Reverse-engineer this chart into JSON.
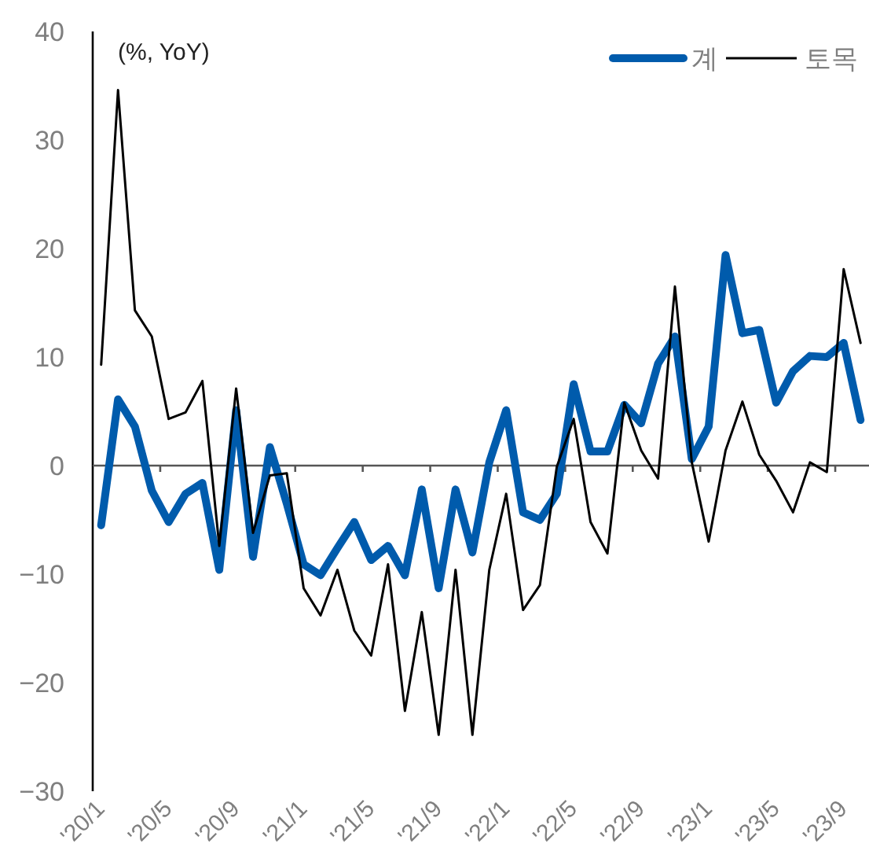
{
  "chart_data": {
    "type": "line",
    "categories": [
      "'20/1",
      null,
      null,
      null,
      "'20/5",
      null,
      null,
      null,
      "'20/9",
      null,
      null,
      null,
      "'21/1",
      null,
      null,
      null,
      "'21/5",
      null,
      null,
      null,
      "'21/9",
      null,
      null,
      null,
      "'22/1",
      null,
      null,
      null,
      "'22/5",
      null,
      null,
      null,
      "'22/9",
      null,
      null,
      null,
      "'23/1",
      null,
      null,
      null,
      "'23/5",
      null,
      null,
      null,
      "'23/9",
      null
    ],
    "series": [
      {
        "name": "계",
        "color": "#005bac",
        "values": [
          -5.5,
          6.1,
          3.6,
          -2.3,
          -5.2,
          -2.6,
          -1.6,
          -9.6,
          5.1,
          -8.4,
          1.7,
          -3.5,
          -9.1,
          -10.1,
          -7.6,
          -5.2,
          -8.7,
          -7.4,
          -10.1,
          -2.2,
          -11.3,
          -2.2,
          -8,
          0.3,
          5.1,
          -4.3,
          -5,
          -2.6,
          7.5,
          1.3,
          1.3,
          5.6,
          3.9,
          9.4,
          11.9,
          0.6,
          3.6,
          19.4,
          12.2,
          12.5,
          5.8,
          8.7,
          10.1,
          10,
          11.3,
          4.2
        ]
      },
      {
        "name": "토목",
        "color": "#000000",
        "values": [
          9.3,
          34.6,
          14.3,
          11.9,
          4.3,
          4.9,
          7.8,
          -7.4,
          7.1,
          -6.2,
          -0.9,
          -0.7,
          -11.3,
          -13.8,
          -9.6,
          -15.2,
          -17.5,
          -9.1,
          -22.6,
          -13.5,
          -24.8,
          -9.6,
          -24.8,
          -9.6,
          -2.6,
          -13.3,
          -11,
          -0.1,
          4.3,
          -5.2,
          -8.1,
          5.8,
          1.4,
          -1.2,
          16.5,
          0.3,
          -7,
          1.4,
          5.9,
          1,
          -1.4,
          -4.3,
          0.3,
          -0.6,
          18.1,
          11.3
        ]
      }
    ],
    "ylim": [
      -30,
      40
    ],
    "yticks": [
      {
        "value": -30,
        "label": "−30"
      },
      {
        "value": -20,
        "label": "−20"
      },
      {
        "value": -10,
        "label": "−10"
      },
      0,
      10,
      20,
      30,
      40
    ],
    "legend": "top right",
    "annotations": [
      "(%, YoY)"
    ]
  }
}
